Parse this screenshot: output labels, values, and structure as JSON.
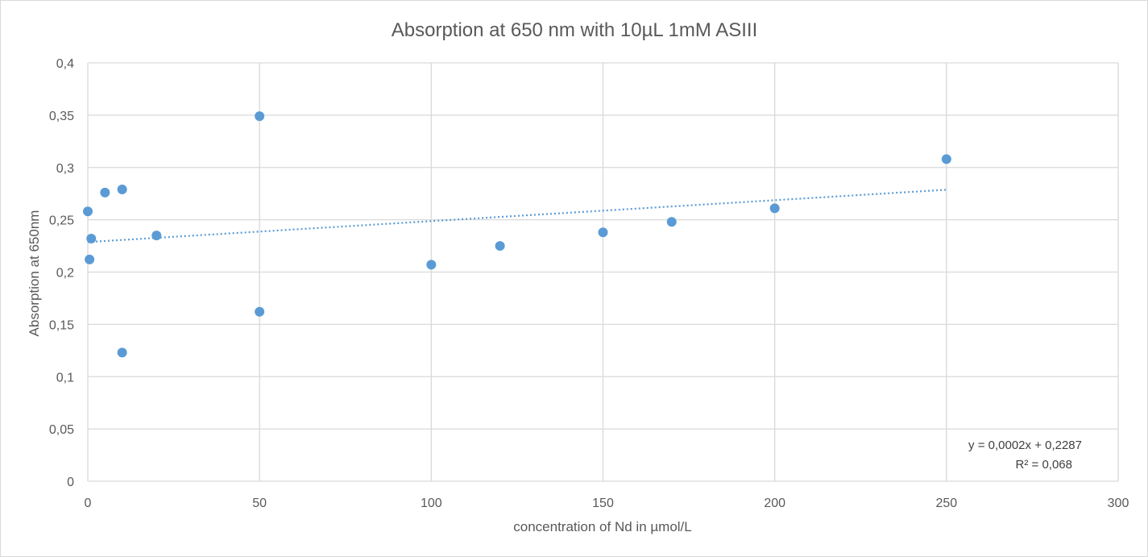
{
  "chart_data": {
    "type": "scatter",
    "title": "Absorption at 650 nm with 10µL 1mM ASIII",
    "xlabel": "concentration of Nd in µmol/L",
    "ylabel": "Absorption at 650nm",
    "xlim": [
      0,
      300
    ],
    "ylim": [
      0,
      0.4
    ],
    "x_ticks": [
      0,
      50,
      100,
      150,
      200,
      250,
      300
    ],
    "x_tick_labels": [
      "0",
      "50",
      "100",
      "150",
      "200",
      "250",
      "300"
    ],
    "y_ticks": [
      0,
      0.05,
      0.1,
      0.15,
      0.2,
      0.25,
      0.3,
      0.35,
      0.4
    ],
    "y_tick_labels": [
      "0",
      "0,05",
      "0,1",
      "0,15",
      "0,2",
      "0,25",
      "0,3",
      "0,35",
      "0,4"
    ],
    "grid": true,
    "series": [
      {
        "color": "#5b9bd5",
        "points": [
          {
            "x": 0,
            "y": 0.258
          },
          {
            "x": 1,
            "y": 0.232
          },
          {
            "x": 0.5,
            "y": 0.212
          },
          {
            "x": 5,
            "y": 0.276
          },
          {
            "x": 10,
            "y": 0.279
          },
          {
            "x": 10,
            "y": 0.123
          },
          {
            "x": 20,
            "y": 0.235
          },
          {
            "x": 50,
            "y": 0.349
          },
          {
            "x": 50,
            "y": 0.162
          },
          {
            "x": 100,
            "y": 0.207
          },
          {
            "x": 120,
            "y": 0.225
          },
          {
            "x": 150,
            "y": 0.238
          },
          {
            "x": 170,
            "y": 0.248
          },
          {
            "x": 200,
            "y": 0.261
          },
          {
            "x": 250,
            "y": 0.308
          }
        ]
      }
    ],
    "trendline": {
      "type": "linear",
      "slope": 0.0002,
      "intercept": 0.2287,
      "x_range": [
        0,
        250
      ],
      "equation": "y = 0,0002x + 0,2287",
      "r_squared": "R² = 0,068"
    }
  }
}
